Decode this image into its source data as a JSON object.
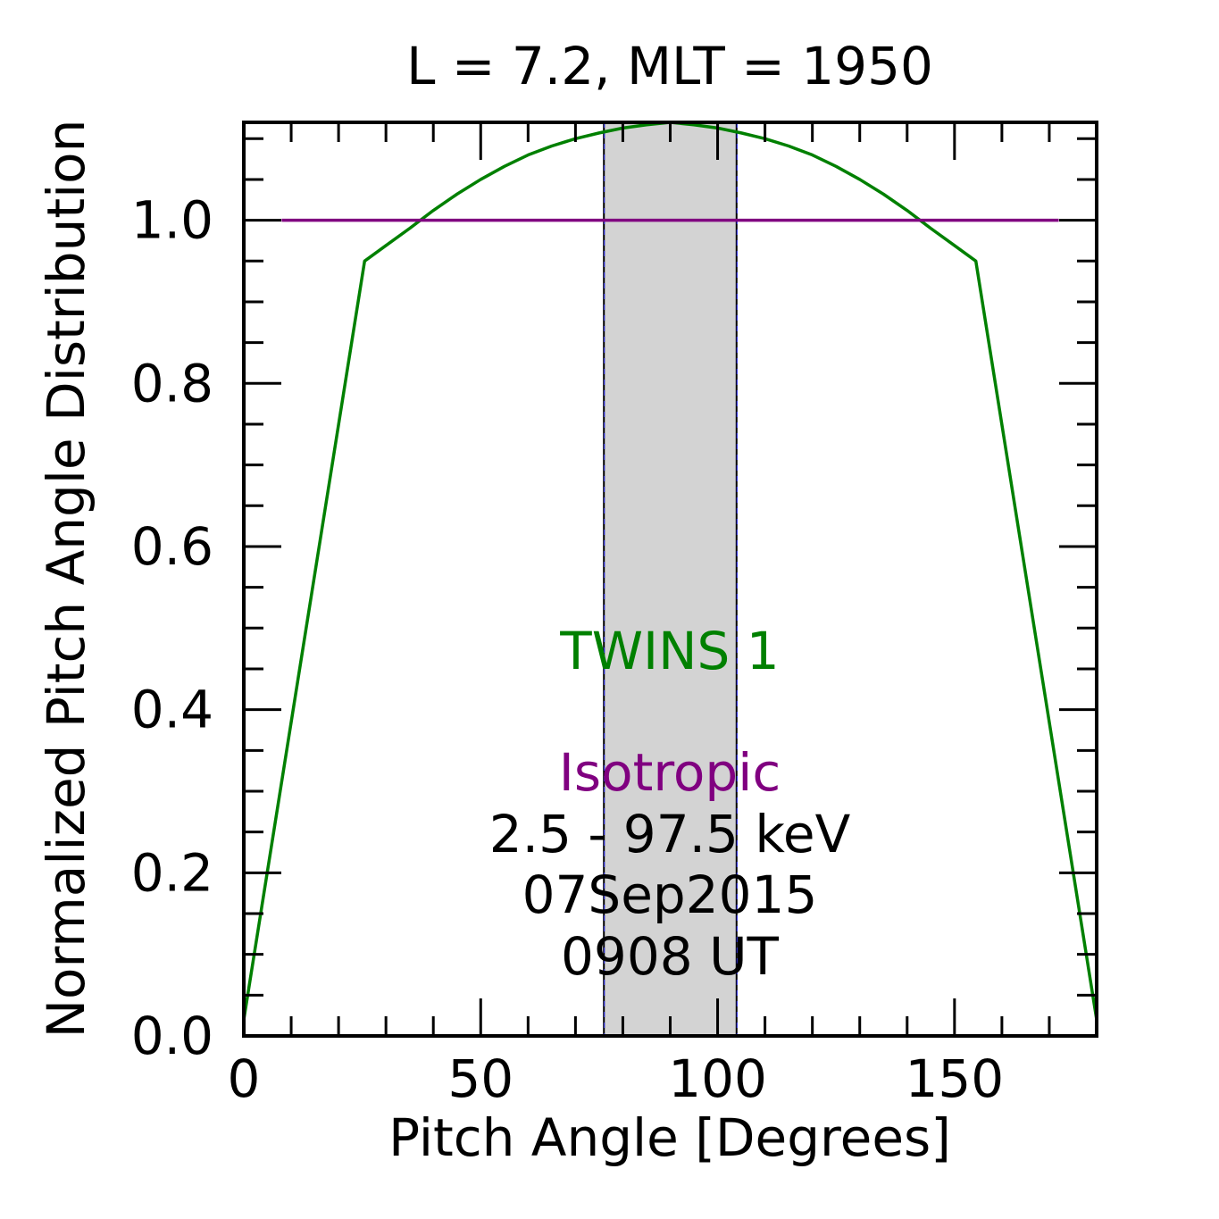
{
  "chart_data": {
    "type": "line",
    "title": "L =  7.2, MLT = 1950",
    "xlabel": "Pitch Angle [Degrees]",
    "ylabel": "Normalized Pitch Angle Distribution",
    "xlim": [
      0,
      180
    ],
    "ylim": [
      0,
      1.12
    ],
    "x_ticks": [
      0,
      50,
      100,
      150
    ],
    "x_tick_labels": [
      "0",
      "50",
      "100",
      "150"
    ],
    "x_minor_step": 10,
    "y_ticks": [
      0.0,
      0.2,
      0.4,
      0.6,
      0.8,
      1.0
    ],
    "y_tick_labels": [
      "0.0",
      "0.2",
      "0.4",
      "0.6",
      "0.8",
      "1.0"
    ],
    "y_minor_step": 0.05,
    "grid": false,
    "shaded_region": {
      "x": [
        76,
        104
      ],
      "color": "#d3d3d3"
    },
    "series": [
      {
        "name": "TWINS 1",
        "color": "#008000",
        "x": [
          0,
          25.5,
          30,
          35,
          40,
          45,
          50,
          55,
          60,
          65,
          70,
          75,
          80,
          85,
          90,
          95,
          100,
          105,
          110,
          115,
          120,
          125,
          130,
          135,
          140,
          145,
          150,
          154.5,
          180
        ],
        "y": [
          0.02,
          0.95,
          0.969,
          0.99,
          1.012,
          1.032,
          1.05,
          1.066,
          1.08,
          1.091,
          1.1,
          1.107,
          1.113,
          1.117,
          1.12,
          1.117,
          1.113,
          1.107,
          1.1,
          1.091,
          1.08,
          1.066,
          1.05,
          1.032,
          1.012,
          0.99,
          0.969,
          0.95,
          0.02
        ]
      },
      {
        "name": "Isotropic",
        "color": "#800080",
        "x": [
          8,
          172
        ],
        "y": [
          1.0,
          1.0
        ]
      }
    ],
    "annotations": [
      {
        "text": "TWINS 1",
        "color": "#008000"
      },
      {
        "text": "Isotropic",
        "color": "#800080"
      },
      {
        "text": "2.5 - 97.5 keV",
        "color": "#000000"
      },
      {
        "text": "07Sep2015",
        "color": "#000000"
      },
      {
        "text": "0908 UT",
        "color": "#000000"
      }
    ]
  }
}
